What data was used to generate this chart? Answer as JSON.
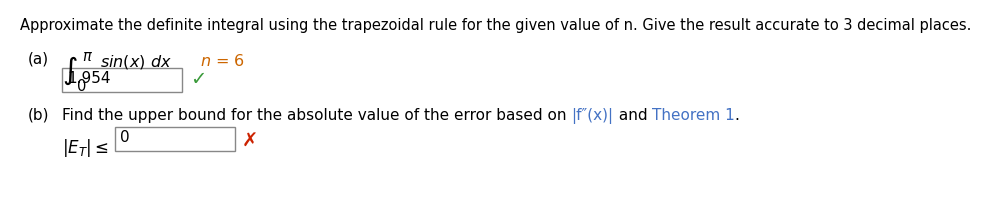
{
  "bg_color": "#ffffff",
  "title_text": "Approximate the definite integral using the trapezoidal rule for the given value of n. Give the result accurate to 3 decimal places.",
  "title_fontsize": 10.5,
  "title_color": "#000000",
  "part_a_label": "(a)",
  "n_equals": "n = 6",
  "n_color": "#cc6600",
  "answer_a": "1.954",
  "checkmark_color": "#3a9a3a",
  "part_b_label": "(b)",
  "part_b_text1": "Find the upper bound for the absolute value of the error based on ",
  "part_b_highlight1": "|f″(x)|",
  "part_b_text2": " and ",
  "part_b_highlight2": "Theorem 1",
  "part_b_text3": ".",
  "part_b_color_normal": "#000000",
  "part_b_color_highlight": "#4472c4",
  "answer_b": "0",
  "crossmark_color": "#cc2200",
  "box_edge_color": "#888888",
  "black": "#000000"
}
